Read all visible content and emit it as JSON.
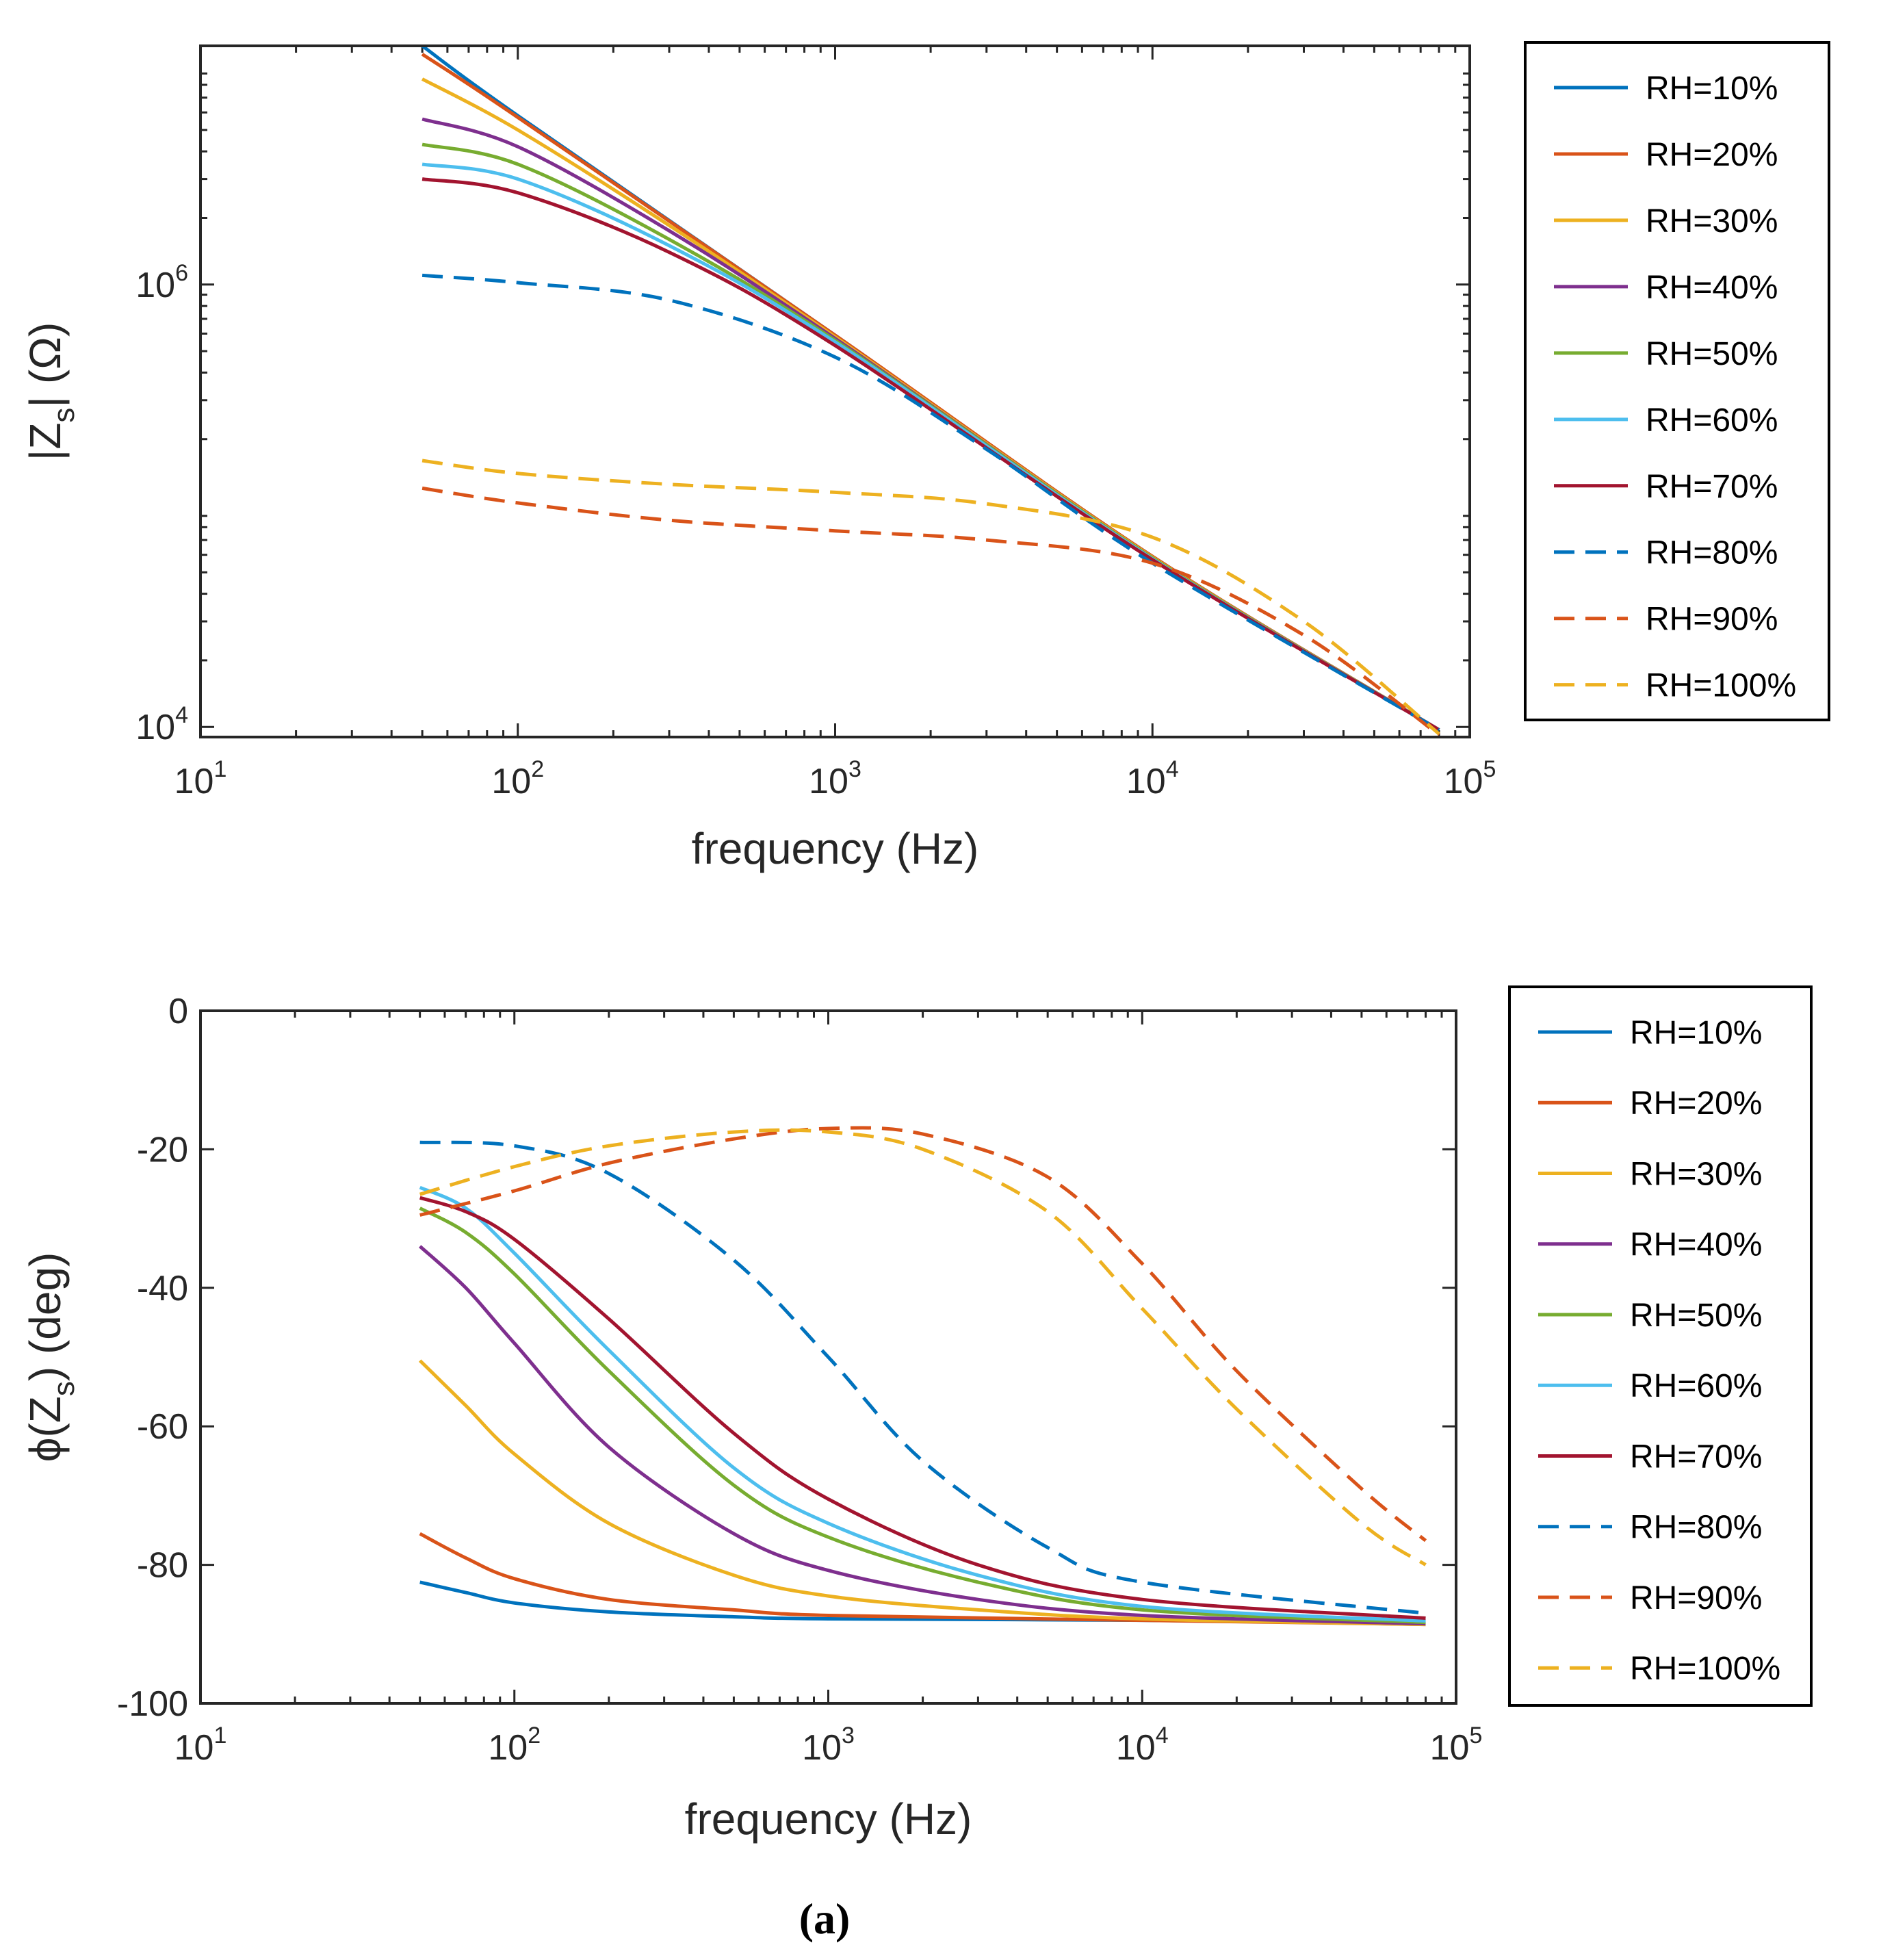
{
  "caption": "(a)",
  "styles": {
    "RH=10%": {
      "color": "#0072BD",
      "dash": false
    },
    "RH=20%": {
      "color": "#D95319",
      "dash": false
    },
    "RH=30%": {
      "color": "#EDB120",
      "dash": false
    },
    "RH=40%": {
      "color": "#7E2F8E",
      "dash": false
    },
    "RH=50%": {
      "color": "#77AC30",
      "dash": false
    },
    "RH=60%": {
      "color": "#4DBEEE",
      "dash": false
    },
    "RH=70%": {
      "color": "#A2142F",
      "dash": false
    },
    "RH=80%": {
      "color": "#0072BD",
      "dash": true
    },
    "RH=90%": {
      "color": "#D95319",
      "dash": true
    },
    "RH=100%": {
      "color": "#EDB120",
      "dash": true
    }
  },
  "chart_data": [
    {
      "type": "line",
      "title": "",
      "xlabel": "frequency (Hz)",
      "ylabel_parts": {
        "pre": "|Z",
        "sub": "s",
        "post": "| (Ω)"
      },
      "xscale": "log",
      "yscale": "log",
      "xlim": [
        10,
        100000
      ],
      "ylim": [
        9000,
        12000000
      ],
      "x_ticks": [
        {
          "base": "10",
          "exp": "1"
        },
        {
          "base": "10",
          "exp": "2"
        },
        {
          "base": "10",
          "exp": "3"
        },
        {
          "base": "10",
          "exp": "4"
        },
        {
          "base": "10",
          "exp": "5"
        }
      ],
      "y_ticks": [
        {
          "value": 10000,
          "base": "10",
          "exp": "4"
        },
        {
          "value": 1000000,
          "base": "10",
          "exp": "6"
        }
      ],
      "legend_position": "outside-right",
      "series": [
        {
          "name": "RH=10%",
          "x": [
            50,
            100,
            1000,
            10000,
            80000
          ],
          "y": [
            12000000,
            5800000,
            590000,
            59000,
            9700
          ]
        },
        {
          "name": "RH=20%",
          "x": [
            50,
            100,
            1000,
            10000,
            80000
          ],
          "y": [
            11000000,
            5700000,
            590000,
            59000,
            9700
          ]
        },
        {
          "name": "RH=30%",
          "x": [
            50,
            100,
            300,
            1000,
            10000,
            80000
          ],
          "y": [
            8500000,
            5000000,
            1850000,
            580000,
            58500,
            9700
          ]
        },
        {
          "name": "RH=40%",
          "x": [
            50,
            100,
            300,
            1000,
            10000,
            80000
          ],
          "y": [
            5600000,
            4200000,
            1750000,
            570000,
            58000,
            9700
          ]
        },
        {
          "name": "RH=50%",
          "x": [
            50,
            100,
            300,
            1000,
            10000,
            80000
          ],
          "y": [
            4300000,
            3500000,
            1600000,
            560000,
            58000,
            9700
          ]
        },
        {
          "name": "RH=60%",
          "x": [
            50,
            100,
            300,
            1000,
            10000,
            80000
          ],
          "y": [
            3500000,
            3000000,
            1500000,
            550000,
            57500,
            9700
          ]
        },
        {
          "name": "RH=70%",
          "x": [
            50,
            100,
            300,
            1000,
            10000,
            80000
          ],
          "y": [
            3000000,
            2600000,
            1400000,
            530000,
            57000,
            9700
          ]
        },
        {
          "name": "RH=80%",
          "x": [
            50,
            100,
            300,
            1000,
            3000,
            10000,
            80000
          ],
          "y": [
            1100000,
            1020000,
            850000,
            470000,
            180000,
            55000,
            9700
          ]
        },
        {
          "name": "RH=90%",
          "x": [
            50,
            100,
            300,
            1000,
            3000,
            10000,
            30000,
            80000
          ],
          "y": [
            120000,
            103000,
            86000,
            77000,
            70000,
            55000,
            26000,
            9200
          ]
        },
        {
          "name": "RH=100%",
          "x": [
            50,
            100,
            300,
            1000,
            3000,
            10000,
            30000,
            80000
          ],
          "y": [
            160000,
            140000,
            125000,
            115000,
            102000,
            72000,
            30000,
            9300
          ]
        }
      ]
    },
    {
      "type": "line",
      "title": "",
      "xlabel": "frequency (Hz)",
      "ylabel_parts": {
        "pre": "ϕ(Z",
        "sub": "s",
        "post": ") (deg)"
      },
      "xscale": "log",
      "yscale": "linear",
      "xlim": [
        10,
        100000
      ],
      "ylim": [
        -100,
        0
      ],
      "x_ticks": [
        {
          "base": "10",
          "exp": "1"
        },
        {
          "base": "10",
          "exp": "2"
        },
        {
          "base": "10",
          "exp": "3"
        },
        {
          "base": "10",
          "exp": "4"
        },
        {
          "base": "10",
          "exp": "5"
        }
      ],
      "y_ticks": [
        {
          "value": 0,
          "label": "0"
        },
        {
          "value": -20,
          "label": "-20"
        },
        {
          "value": -40,
          "label": "-40"
        },
        {
          "value": -60,
          "label": "-60"
        },
        {
          "value": -80,
          "label": "-80"
        },
        {
          "value": -100,
          "label": "-100"
        }
      ],
      "legend_position": "outside-right",
      "series": [
        {
          "name": "RH=10%",
          "x": [
            50,
            70,
            100,
            200,
            500,
            1000,
            10000,
            80000
          ],
          "y": [
            -82.5,
            -84,
            -85.5,
            -86.8,
            -87.5,
            -87.8,
            -88,
            -88.5
          ]
        },
        {
          "name": "RH=20%",
          "x": [
            50,
            70,
            100,
            200,
            500,
            1000,
            10000,
            80000
          ],
          "y": [
            -75.5,
            -79,
            -82,
            -85,
            -86.5,
            -87.3,
            -88,
            -88.6
          ]
        },
        {
          "name": "RH=30%",
          "x": [
            50,
            70,
            100,
            200,
            500,
            1000,
            3000,
            10000,
            80000
          ],
          "y": [
            -50.5,
            -57,
            -64,
            -74,
            -81.5,
            -84.5,
            -86.5,
            -87.8,
            -88.6
          ]
        },
        {
          "name": "RH=40%",
          "x": [
            50,
            70,
            100,
            200,
            500,
            1000,
            3000,
            10000,
            80000
          ],
          "y": [
            -34,
            -40,
            -48,
            -63,
            -75.5,
            -80.8,
            -85,
            -87.3,
            -88.5
          ]
        },
        {
          "name": "RH=50%",
          "x": [
            50,
            70,
            100,
            200,
            500,
            1000,
            3000,
            10000,
            80000
          ],
          "y": [
            -28.5,
            -32,
            -38,
            -52,
            -68.5,
            -76,
            -82.5,
            -86.5,
            -88.3
          ]
        },
        {
          "name": "RH=60%",
          "x": [
            50,
            70,
            100,
            200,
            500,
            1000,
            3000,
            10000,
            80000
          ],
          "y": [
            -25.5,
            -28.5,
            -35,
            -49,
            -66,
            -74,
            -81.5,
            -86,
            -88.1
          ]
        },
        {
          "name": "RH=70%",
          "x": [
            50,
            70,
            100,
            200,
            500,
            1000,
            3000,
            10000,
            80000
          ],
          "y": [
            -27,
            -29,
            -33,
            -44.5,
            -61,
            -70.5,
            -80,
            -85,
            -87.7
          ]
        },
        {
          "name": "RH=80%",
          "x": [
            50,
            100,
            200,
            500,
            1000,
            2000,
            5000,
            10000,
            80000
          ],
          "y": [
            -19,
            -19.5,
            -23.5,
            -36,
            -50,
            -65,
            -77.5,
            -82.5,
            -87
          ]
        },
        {
          "name": "RH=90%",
          "x": [
            50,
            100,
            200,
            500,
            1000,
            2000,
            5000,
            10000,
            20000,
            50000,
            80000
          ],
          "y": [
            -29.5,
            -26,
            -22,
            -18.5,
            -17,
            -17.8,
            -24,
            -36.5,
            -52,
            -69,
            -76.5
          ]
        },
        {
          "name": "RH=100%",
          "x": [
            50,
            100,
            200,
            500,
            1000,
            2000,
            5000,
            10000,
            20000,
            50000,
            80000
          ],
          "y": [
            -26.5,
            -22.5,
            -19.5,
            -17.5,
            -17.5,
            -20,
            -29,
            -43,
            -57.5,
            -74,
            -80
          ]
        }
      ]
    }
  ]
}
